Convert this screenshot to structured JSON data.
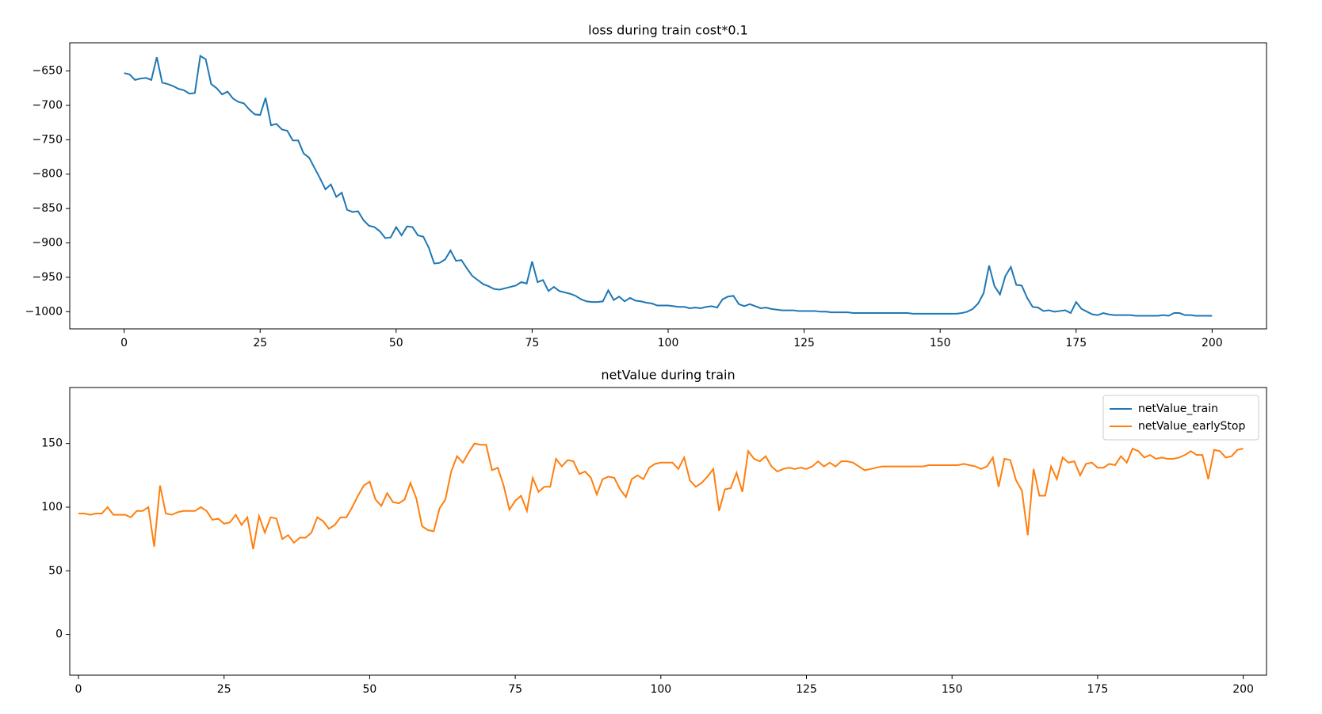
{
  "chart_data": [
    {
      "type": "line",
      "title": "loss during train cost*0.1",
      "x": [
        0,
        1,
        2,
        3,
        4,
        5,
        6,
        7,
        8,
        9,
        10,
        11,
        12,
        13,
        14,
        15,
        16,
        17,
        18,
        19,
        20,
        21,
        22,
        23,
        24,
        25,
        26,
        27,
        28,
        29,
        30,
        31,
        32,
        33,
        34,
        35,
        36,
        37,
        38,
        39,
        40,
        41,
        42,
        43,
        44,
        45,
        46,
        47,
        48,
        49,
        50,
        51,
        52,
        53,
        54,
        55,
        56,
        57,
        58,
        59,
        60,
        61,
        62,
        63,
        64,
        65,
        66,
        67,
        68,
        69,
        70,
        71,
        72,
        73,
        74,
        75,
        76,
        77,
        78,
        79,
        80,
        81,
        82,
        83,
        84,
        85,
        86,
        87,
        88,
        89,
        90,
        91,
        92,
        93,
        94,
        95,
        96,
        97,
        98,
        99,
        100,
        101,
        102,
        103,
        104,
        105,
        106,
        107,
        108,
        109,
        110,
        111,
        112,
        113,
        114,
        115,
        116,
        117,
        118,
        119,
        120,
        121,
        122,
        123,
        124,
        125,
        126,
        127,
        128,
        129,
        130,
        131,
        132,
        133,
        134,
        135,
        136,
        137,
        138,
        139,
        140,
        141,
        142,
        143,
        144,
        145,
        146,
        147,
        148,
        149,
        150,
        151,
        152,
        153,
        154,
        155,
        156,
        157,
        158,
        159,
        160,
        161,
        162,
        163,
        164,
        165,
        166,
        167,
        168,
        169,
        170,
        171,
        172,
        173,
        174,
        175,
        176,
        177,
        178,
        179,
        180,
        181,
        182,
        183,
        184,
        185,
        186,
        187,
        188,
        189,
        190,
        191,
        192,
        193,
        194,
        195,
        196,
        197,
        198,
        199,
        200
      ],
      "series": [
        {
          "name": null,
          "color": "#1f77b4",
          "values": [
            -653,
            -655,
            -663,
            -661,
            -660,
            -663,
            -630,
            -667,
            -669,
            -672,
            -676,
            -678,
            -683,
            -682,
            -628,
            -633,
            -669,
            -675,
            -684,
            -680,
            -690,
            -695,
            -697,
            -706,
            -713,
            -714,
            -689,
            -729,
            -727,
            -735,
            -737,
            -751,
            -751,
            -770,
            -776,
            -791,
            -806,
            -822,
            -815,
            -833,
            -827,
            -852,
            -855,
            -854,
            -867,
            -875,
            -877,
            -883,
            -893,
            -892,
            -877,
            -889,
            -876,
            -877,
            -889,
            -891,
            -907,
            -930,
            -929,
            -924,
            -911,
            -926,
            -925,
            -937,
            -948,
            -954,
            -960,
            -963,
            -967,
            -968,
            -966,
            -964,
            -962,
            -957,
            -959,
            -927,
            -957,
            -954,
            -970,
            -964,
            -970,
            -972,
            -974,
            -977,
            -982,
            -985,
            -986,
            -986,
            -985,
            -969,
            -983,
            -978,
            -985,
            -980,
            -984,
            -985,
            -987,
            -988,
            -991,
            -991,
            -991,
            -992,
            -993,
            -993,
            -995,
            -994,
            -995,
            -993,
            -992,
            -994,
            -982,
            -978,
            -977,
            -989,
            -992,
            -989,
            -992,
            -995,
            -994,
            -996,
            -997,
            -998,
            -998,
            -998,
            -999,
            -999,
            -999,
            -999,
            -1000,
            -1000,
            -1001,
            -1001,
            -1001,
            -1001,
            -1002,
            -1002,
            -1002,
            -1002,
            -1002,
            -1002,
            -1002,
            -1002,
            -1002,
            -1002,
            -1002,
            -1003,
            -1003,
            -1003,
            -1003,
            -1003,
            -1003,
            -1003,
            -1003,
            -1003,
            -1002,
            -1000,
            -996,
            -988,
            -973,
            -933,
            -963,
            -975,
            -948,
            -935,
            -961,
            -962,
            -980,
            -993,
            -994,
            -999,
            -998,
            -1000,
            -999,
            -998,
            -1002,
            -986,
            -996,
            -1000,
            -1004,
            -1005,
            -1002,
            -1004,
            -1005,
            -1005,
            -1005,
            -1005,
            -1006,
            -1006,
            -1006,
            -1006,
            -1006,
            -1005,
            -1006,
            -1002,
            -1002,
            -1005,
            -1005,
            -1006,
            -1006,
            -1006,
            -1006
          ]
        }
      ],
      "xlim": [
        -10,
        210
      ],
      "ylim": [
        -1025,
        -609
      ],
      "xticks": [
        0,
        25,
        50,
        75,
        100,
        125,
        150,
        175,
        200
      ],
      "yticks": [
        {
          "value": -650,
          "label": "−650"
        },
        {
          "value": -700,
          "label": "−700"
        },
        {
          "value": -750,
          "label": "−750"
        },
        {
          "value": -800,
          "label": "−800"
        },
        {
          "value": -850,
          "label": "−850"
        },
        {
          "value": -900,
          "label": "−900"
        },
        {
          "value": -950,
          "label": "−950"
        },
        {
          "value": -1000,
          "label": "−1000"
        }
      ]
    },
    {
      "type": "line",
      "title": "netValue during train",
      "legend": "upper right",
      "x": [
        0,
        1,
        2,
        3,
        4,
        5,
        6,
        7,
        8,
        9,
        10,
        11,
        12,
        13,
        14,
        15,
        16,
        17,
        18,
        19,
        20,
        21,
        22,
        23,
        24,
        25,
        26,
        27,
        28,
        29,
        30,
        31,
        32,
        33,
        34,
        35,
        36,
        37,
        38,
        39,
        40,
        41,
        42,
        43,
        44,
        45,
        46,
        47,
        48,
        49,
        50,
        51,
        52,
        53,
        54,
        55,
        56,
        57,
        58,
        59,
        60,
        61,
        62,
        63,
        64,
        65,
        66,
        67,
        68,
        69,
        70,
        71,
        72,
        73,
        74,
        75,
        76,
        77,
        78,
        79,
        80,
        81,
        82,
        83,
        84,
        85,
        86,
        87,
        88,
        89,
        90,
        91,
        92,
        93,
        94,
        95,
        96,
        97,
        98,
        99,
        100,
        101,
        102,
        103,
        104,
        105,
        106,
        107,
        108,
        109,
        110,
        111,
        112,
        113,
        114,
        115,
        116,
        117,
        118,
        119,
        120,
        121,
        122,
        123,
        124,
        125,
        126,
        127,
        128,
        129,
        130,
        131,
        132,
        133,
        134,
        135,
        136,
        137,
        138,
        139,
        140,
        141,
        142,
        143,
        144,
        145,
        146,
        147,
        148,
        149,
        150,
        151,
        152,
        153,
        154,
        155,
        156,
        157,
        158,
        159,
        160,
        161,
        162,
        163,
        164,
        165,
        166,
        167,
        168,
        169,
        170,
        171,
        172,
        173,
        174,
        175,
        176,
        177,
        178,
        179,
        180,
        181,
        182,
        183,
        184,
        185,
        186,
        187,
        188,
        189,
        190,
        191,
        192,
        193,
        194,
        195,
        196,
        197,
        198,
        199,
        200
      ],
      "series": [
        {
          "name": "netValue_train",
          "color": "#1f77b4",
          "values": [
            null,
            null,
            null,
            null,
            null,
            null,
            null,
            null,
            null,
            null,
            null,
            null,
            null,
            null,
            null,
            null,
            null,
            null,
            null,
            null,
            null,
            null,
            null,
            null,
            null,
            null,
            null,
            null,
            null,
            null,
            null,
            null,
            null,
            null,
            null,
            null,
            null,
            null,
            null,
            null,
            null,
            null,
            null,
            null,
            null,
            null,
            null,
            null,
            null,
            null,
            null,
            null,
            null,
            null,
            null,
            null,
            null,
            null,
            null,
            null,
            null,
            null,
            null,
            null,
            null,
            null,
            null,
            null,
            null,
            null,
            null,
            null,
            null,
            null,
            null,
            null,
            null,
            null,
            null,
            null,
            null,
            null,
            null,
            null,
            null,
            null,
            null,
            null,
            null,
            null,
            null,
            null,
            null,
            null,
            null,
            null,
            null,
            null,
            null,
            null,
            null,
            null,
            null,
            null,
            null,
            null,
            null,
            null,
            null,
            null,
            null,
            null,
            null,
            null,
            null,
            null,
            null,
            null,
            null,
            null,
            null,
            null,
            null,
            null,
            null,
            null,
            null,
            null,
            null,
            null,
            null,
            null,
            null,
            null,
            null,
            null,
            null,
            null,
            null,
            null,
            null,
            null,
            null,
            null,
            null,
            null,
            null,
            null,
            null,
            null,
            null,
            null,
            null,
            null,
            null,
            null,
            null,
            null,
            null,
            null,
            null,
            null,
            null,
            null,
            null,
            null,
            null,
            null,
            null,
            null,
            null,
            null,
            null,
            null,
            null,
            null,
            null,
            null,
            null,
            null,
            null,
            null,
            null,
            null,
            null,
            null,
            null,
            null,
            null,
            null,
            null,
            null,
            null,
            null,
            null,
            null,
            null,
            null,
            null,
            null,
            null
          ]
        },
        {
          "name": "netValue_earlyStop",
          "color": "#ff7f0e",
          "values": [
            95,
            95,
            94,
            95,
            95,
            100,
            94,
            94,
            94,
            92,
            97,
            97,
            100,
            69,
            117,
            95,
            94,
            96,
            97,
            97,
            97,
            100,
            97,
            90,
            91,
            87,
            88,
            94,
            86,
            92,
            67,
            93,
            80,
            92,
            91,
            75,
            78,
            72,
            76,
            76,
            80,
            92,
            89,
            83,
            86,
            92,
            92,
            100,
            109,
            117,
            120,
            106,
            101,
            111,
            104,
            103,
            106,
            119,
            107,
            85,
            82,
            81,
            99,
            106,
            128,
            140,
            135,
            143,
            150,
            149,
            149,
            129,
            131,
            117,
            98,
            105,
            109,
            97,
            123,
            112,
            116,
            116,
            138,
            132,
            137,
            136,
            126,
            128,
            123,
            110,
            122,
            124,
            123,
            114,
            108,
            122,
            125,
            122,
            131,
            134,
            135,
            135,
            135,
            130,
            139,
            121,
            116,
            119,
            124,
            130,
            97,
            114,
            115,
            127,
            112,
            144,
            138,
            136,
            140,
            132,
            128,
            130,
            131,
            130,
            131,
            130,
            132,
            136,
            132,
            135,
            132,
            136,
            136,
            135,
            132,
            129,
            130,
            131,
            132,
            132,
            132,
            132,
            132,
            132,
            132,
            132,
            133,
            133,
            133,
            133,
            133,
            133,
            134,
            133,
            132,
            130,
            132,
            139,
            116,
            138,
            137,
            121,
            113,
            78,
            130,
            109,
            109,
            132,
            122,
            139,
            135,
            136,
            125,
            134,
            135,
            131,
            131,
            134,
            133,
            140,
            135,
            146,
            144,
            139,
            141,
            138,
            139,
            138,
            138,
            139,
            141,
            144,
            141,
            141,
            122,
            145,
            144,
            139,
            140,
            145,
            146
          ]
        }
      ],
      "xlim": [
        -1.5,
        204
      ],
      "ylim": [
        -32,
        194
      ],
      "xticks": [
        0,
        25,
        50,
        75,
        100,
        125,
        150,
        175,
        200
      ],
      "yticks": [
        0,
        50,
        100,
        150
      ]
    }
  ]
}
